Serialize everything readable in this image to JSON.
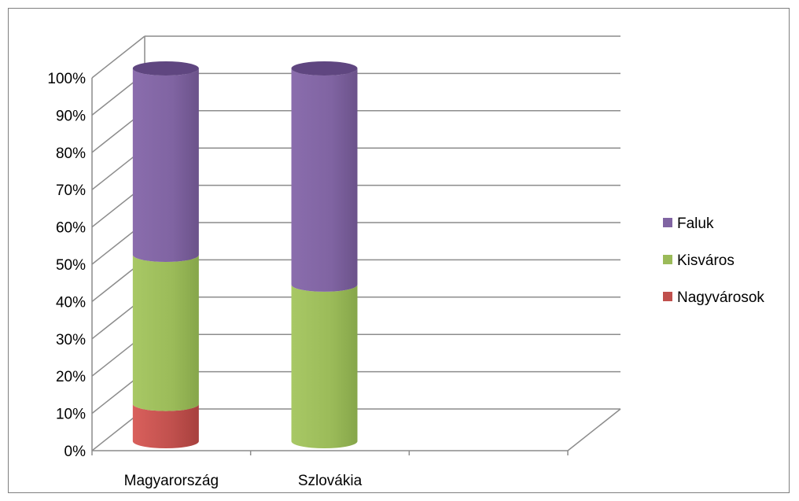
{
  "chart_data": {
    "type": "bar",
    "stacked": true,
    "percent_stacked": true,
    "three_d": true,
    "bar_shape": "cylinder",
    "categories": [
      "Magyarország",
      "Szlovákia"
    ],
    "series": [
      {
        "name": "Nagyvárosok",
        "color": "#c0504d",
        "values": [
          10,
          0
        ]
      },
      {
        "name": "Kisváros",
        "color": "#9bbb59",
        "values": [
          40,
          42
        ]
      },
      {
        "name": "Faluk",
        "color": "#8064a2",
        "values": [
          50,
          58
        ]
      }
    ],
    "ylim": [
      0,
      100
    ],
    "yticks": [
      "0%",
      "10%",
      "20%",
      "30%",
      "40%",
      "50%",
      "60%",
      "70%",
      "80%",
      "90%",
      "100%"
    ],
    "grid": true,
    "legend_position": "right",
    "title": "",
    "xlabel": "",
    "ylabel": ""
  }
}
